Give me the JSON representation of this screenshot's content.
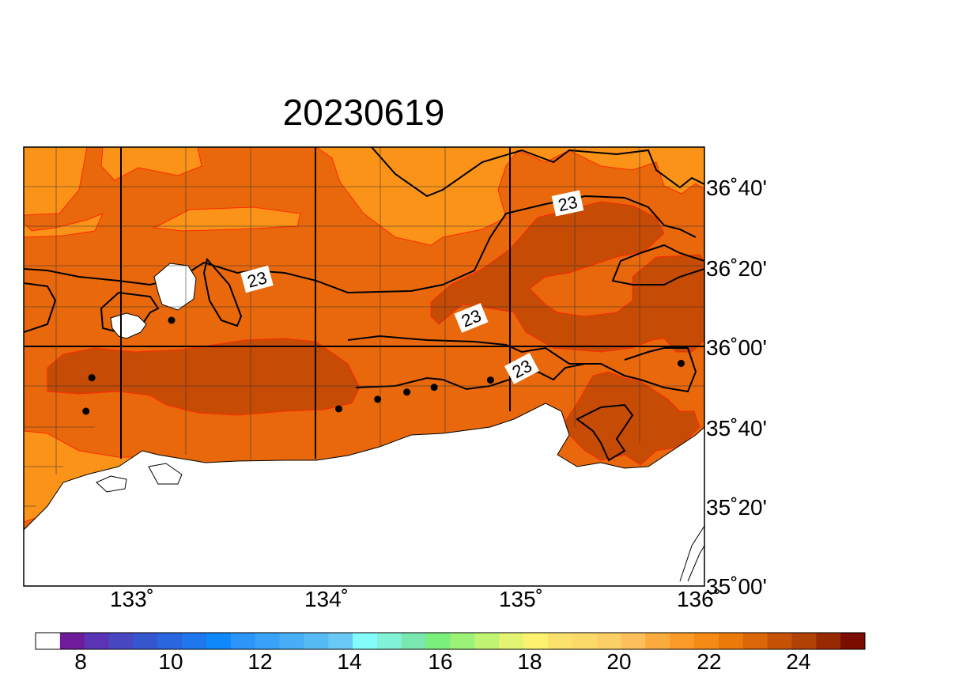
{
  "title": "20230619",
  "colors": {
    "field_21_22": "#FB9319",
    "field_22_23": "#E8680B",
    "field_23_24": "#C64B05",
    "land": "#FFFFFF",
    "band_contour": "#FF2A00",
    "isoline_23": "#000000",
    "station_dot": "#000000"
  },
  "axes": {
    "lon_labels": [
      "133˚",
      "134˚",
      "135˚",
      "136˚"
    ],
    "lat_labels": [
      "36˚40'",
      "36˚20'",
      "36˚00'",
      "35˚40'",
      "35˚20'",
      "35˚00'"
    ]
  },
  "contour_labels": [
    "23",
    "23",
    "23",
    "23"
  ],
  "stations": [
    {
      "lon": 133.26,
      "lat": 36.11
    },
    {
      "lon": 132.85,
      "lat": 35.87
    },
    {
      "lon": 132.82,
      "lat": 35.73
    },
    {
      "lon": 134.12,
      "lat": 35.74
    },
    {
      "lon": 134.32,
      "lat": 35.78
    },
    {
      "lon": 134.47,
      "lat": 35.81
    },
    {
      "lon": 134.61,
      "lat": 35.83
    },
    {
      "lon": 134.9,
      "lat": 35.86
    },
    {
      "lon": 135.88,
      "lat": 35.93
    }
  ],
  "colorbar": {
    "tick_labels": [
      "8",
      "10",
      "12",
      "14",
      "16",
      "18",
      "20",
      "22",
      "24"
    ],
    "colors": [
      "#FFFFFF",
      "#6E1C9A",
      "#5A34B4",
      "#4A48C0",
      "#3656D0",
      "#2A66DE",
      "#1E77EC",
      "#0E88FA",
      "#2C95FA",
      "#3AA2F8",
      "#48AEF6",
      "#56BBF4",
      "#6AC8F4",
      "#84FCFC",
      "#82F2D6",
      "#7AE8AE",
      "#7AF07A",
      "#9CF276",
      "#C2F474",
      "#E2F472",
      "#FCF270",
      "#FCE26C",
      "#FCDA6A",
      "#FCCF66",
      "#FCC05A",
      "#FBAA3E",
      "#FB9A28",
      "#F58A16",
      "#EB7A0A",
      "#DB6608",
      "#C65206",
      "#B04206",
      "#982A02",
      "#7A0C00"
    ]
  }
}
